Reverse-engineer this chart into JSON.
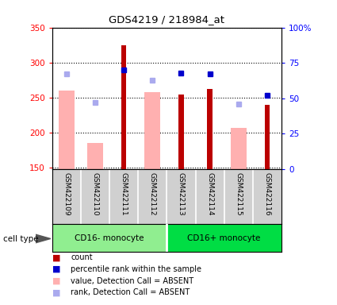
{
  "title": "GDS4219 / 218984_at",
  "samples": [
    "GSM422109",
    "GSM422110",
    "GSM422111",
    "GSM422112",
    "GSM422113",
    "GSM422114",
    "GSM422115",
    "GSM422116"
  ],
  "groups": [
    {
      "label": "CD16- monocyte",
      "indices": [
        0,
        1,
        2,
        3
      ],
      "color": "#90ee90"
    },
    {
      "label": "CD16+ monocyte",
      "indices": [
        4,
        5,
        6,
        7
      ],
      "color": "#00dd44"
    }
  ],
  "count_values": [
    null,
    null,
    325,
    null,
    255,
    262,
    null,
    240
  ],
  "count_absent_values": [
    260,
    185,
    null,
    258,
    null,
    null,
    207,
    null
  ],
  "percentile_rank": [
    null,
    null,
    70,
    null,
    68,
    67,
    null,
    52
  ],
  "rank_absent": [
    67,
    47,
    null,
    63,
    null,
    null,
    46,
    null
  ],
  "ylim_left": [
    148,
    350
  ],
  "ylim_right": [
    0,
    100
  ],
  "yticks_left": [
    150,
    200,
    250,
    300,
    350
  ],
  "yticks_right": [
    0,
    25,
    50,
    75,
    100
  ],
  "yticklabels_right": [
    "0",
    "25",
    "50",
    "75",
    "100%"
  ],
  "count_color": "#bb0000",
  "count_absent_color": "#ffb0b0",
  "percentile_color": "#0000cc",
  "rank_absent_color": "#aaaaee",
  "background_color": "#ffffff",
  "label_area_color": "#d0d0d0",
  "legend_labels": [
    "count",
    "percentile rank within the sample",
    "value, Detection Call = ABSENT",
    "rank, Detection Call = ABSENT"
  ],
  "legend_colors": [
    "#bb0000",
    "#0000cc",
    "#ffb0b0",
    "#aaaaee"
  ]
}
